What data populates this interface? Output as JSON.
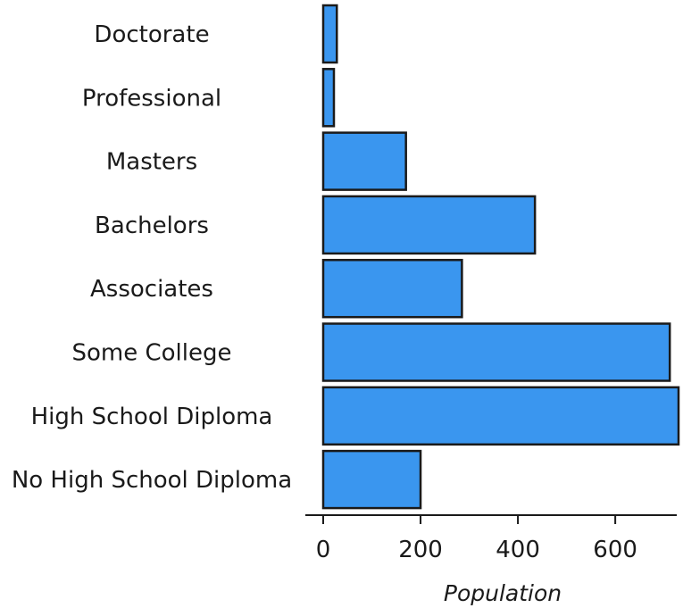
{
  "chart_data": {
    "type": "bar",
    "orientation": "horizontal",
    "categories": [
      "Doctorate",
      "Professional",
      "Masters",
      "Bachelors",
      "Associates",
      "Some College",
      "High School Diploma",
      "No High School Diploma"
    ],
    "values": [
      28,
      22,
      170,
      435,
      285,
      712,
      730,
      200
    ],
    "xlabel": "Population",
    "ylabel": "",
    "xlim": [
      0,
      730
    ],
    "xticks": [
      0,
      200,
      400,
      600
    ],
    "xtick_labels": [
      "0",
      "200",
      "400",
      "600"
    ],
    "grid": false,
    "legend": "none",
    "colors": {
      "bar_fill": "#3a96ef",
      "bar_stroke": "#1a1a1a",
      "axis": "#1a1a1a"
    }
  }
}
